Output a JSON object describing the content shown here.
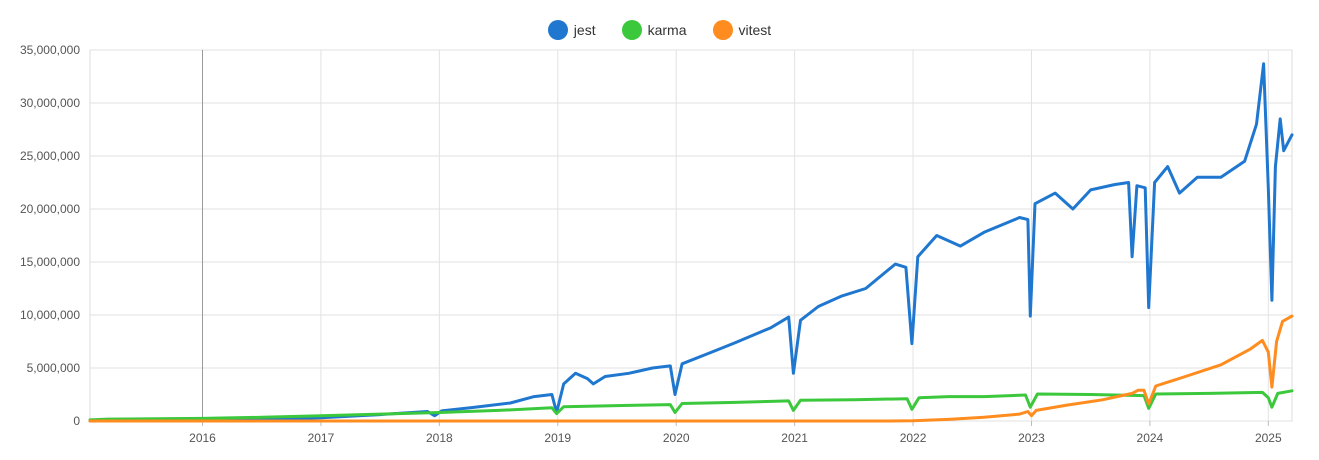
{
  "chart_data": {
    "type": "line",
    "title": "",
    "xlabel": "",
    "ylabel": "",
    "xlim": [
      2015.05,
      2025.2
    ],
    "ylim": [
      0,
      35000000
    ],
    "grid": true,
    "legend_position": "top-center",
    "x_ticks": [
      "2016",
      "2017",
      "2018",
      "2019",
      "2020",
      "2021",
      "2022",
      "2023",
      "2024",
      "2025"
    ],
    "y_ticks": [
      "0",
      "5,000,000",
      "10,000,000",
      "15,000,000",
      "20,000,000",
      "25,000,000",
      "30,000,000",
      "35,000,000"
    ],
    "series": [
      {
        "name": "jest",
        "color": "#1f77d0",
        "points": [
          [
            2015.05,
            0
          ],
          [
            2015.5,
            20000
          ],
          [
            2016.0,
            60000
          ],
          [
            2016.5,
            150000
          ],
          [
            2017.0,
            300000
          ],
          [
            2017.5,
            600000
          ],
          [
            2017.9,
            900000
          ],
          [
            2017.96,
            500000
          ],
          [
            2018.02,
            950000
          ],
          [
            2018.3,
            1300000
          ],
          [
            2018.6,
            1700000
          ],
          [
            2018.8,
            2300000
          ],
          [
            2018.95,
            2500000
          ],
          [
            2018.99,
            800000
          ],
          [
            2019.05,
            3500000
          ],
          [
            2019.15,
            4500000
          ],
          [
            2019.25,
            4000000
          ],
          [
            2019.3,
            3500000
          ],
          [
            2019.4,
            4200000
          ],
          [
            2019.6,
            4500000
          ],
          [
            2019.8,
            5000000
          ],
          [
            2019.95,
            5200000
          ],
          [
            2019.99,
            2500000
          ],
          [
            2020.05,
            5400000
          ],
          [
            2020.3,
            6500000
          ],
          [
            2020.5,
            7400000
          ],
          [
            2020.8,
            8800000
          ],
          [
            2020.95,
            9800000
          ],
          [
            2020.99,
            4500000
          ],
          [
            2021.05,
            9500000
          ],
          [
            2021.2,
            10800000
          ],
          [
            2021.4,
            11800000
          ],
          [
            2021.6,
            12500000
          ],
          [
            2021.85,
            14800000
          ],
          [
            2021.94,
            14500000
          ],
          [
            2021.99,
            7300000
          ],
          [
            2022.04,
            15500000
          ],
          [
            2022.2,
            17500000
          ],
          [
            2022.4,
            16500000
          ],
          [
            2022.6,
            17800000
          ],
          [
            2022.9,
            19200000
          ],
          [
            2022.97,
            19000000
          ],
          [
            2022.99,
            9900000
          ],
          [
            2023.03,
            20500000
          ],
          [
            2023.2,
            21500000
          ],
          [
            2023.35,
            20000000
          ],
          [
            2023.5,
            21800000
          ],
          [
            2023.7,
            22300000
          ],
          [
            2023.82,
            22500000
          ],
          [
            2023.85,
            15500000
          ],
          [
            2023.89,
            22200000
          ],
          [
            2023.96,
            22000000
          ],
          [
            2023.99,
            10700000
          ],
          [
            2024.04,
            22500000
          ],
          [
            2024.15,
            24000000
          ],
          [
            2024.25,
            21500000
          ],
          [
            2024.4,
            23000000
          ],
          [
            2024.6,
            23000000
          ],
          [
            2024.8,
            24500000
          ],
          [
            2024.9,
            28000000
          ],
          [
            2024.96,
            33700000
          ],
          [
            2025.0,
            22000000
          ],
          [
            2025.03,
            11400000
          ],
          [
            2025.06,
            24000000
          ],
          [
            2025.1,
            28500000
          ],
          [
            2025.13,
            25500000
          ],
          [
            2025.2,
            27000000
          ]
        ]
      },
      {
        "name": "karma",
        "color": "#3cc83c",
        "points": [
          [
            2015.05,
            100000
          ],
          [
            2015.2,
            180000
          ],
          [
            2016.0,
            250000
          ],
          [
            2016.5,
            350000
          ],
          [
            2017.0,
            500000
          ],
          [
            2017.5,
            650000
          ],
          [
            2018.0,
            800000
          ],
          [
            2018.5,
            1000000
          ],
          [
            2018.95,
            1250000
          ],
          [
            2018.99,
            700000
          ],
          [
            2019.05,
            1350000
          ],
          [
            2019.5,
            1450000
          ],
          [
            2019.95,
            1550000
          ],
          [
            2019.99,
            800000
          ],
          [
            2020.05,
            1650000
          ],
          [
            2020.5,
            1750000
          ],
          [
            2020.95,
            1900000
          ],
          [
            2020.99,
            1000000
          ],
          [
            2021.05,
            1950000
          ],
          [
            2021.5,
            2000000
          ],
          [
            2021.95,
            2100000
          ],
          [
            2021.99,
            1100000
          ],
          [
            2022.05,
            2200000
          ],
          [
            2022.3,
            2300000
          ],
          [
            2022.6,
            2300000
          ],
          [
            2022.95,
            2450000
          ],
          [
            2022.99,
            1300000
          ],
          [
            2023.05,
            2550000
          ],
          [
            2023.5,
            2500000
          ],
          [
            2023.95,
            2400000
          ],
          [
            2023.99,
            1200000
          ],
          [
            2024.05,
            2550000
          ],
          [
            2024.5,
            2600000
          ],
          [
            2024.95,
            2700000
          ],
          [
            2025.0,
            2200000
          ],
          [
            2025.03,
            1300000
          ],
          [
            2025.08,
            2600000
          ],
          [
            2025.2,
            2850000
          ]
        ]
      },
      {
        "name": "vitest",
        "color": "#ff8c1f",
        "points": [
          [
            2015.05,
            0
          ],
          [
            2021.8,
            0
          ],
          [
            2022.0,
            20000
          ],
          [
            2022.3,
            150000
          ],
          [
            2022.6,
            350000
          ],
          [
            2022.9,
            650000
          ],
          [
            2022.97,
            900000
          ],
          [
            2023.0,
            500000
          ],
          [
            2023.04,
            1000000
          ],
          [
            2023.3,
            1500000
          ],
          [
            2023.6,
            2000000
          ],
          [
            2023.85,
            2600000
          ],
          [
            2023.9,
            2900000
          ],
          [
            2023.95,
            2900000
          ],
          [
            2023.99,
            1600000
          ],
          [
            2024.05,
            3300000
          ],
          [
            2024.3,
            4200000
          ],
          [
            2024.6,
            5300000
          ],
          [
            2024.85,
            6800000
          ],
          [
            2024.95,
            7600000
          ],
          [
            2025.0,
            6500000
          ],
          [
            2025.03,
            3200000
          ],
          [
            2025.07,
            7500000
          ],
          [
            2025.12,
            9400000
          ],
          [
            2025.2,
            9900000
          ]
        ]
      }
    ]
  }
}
